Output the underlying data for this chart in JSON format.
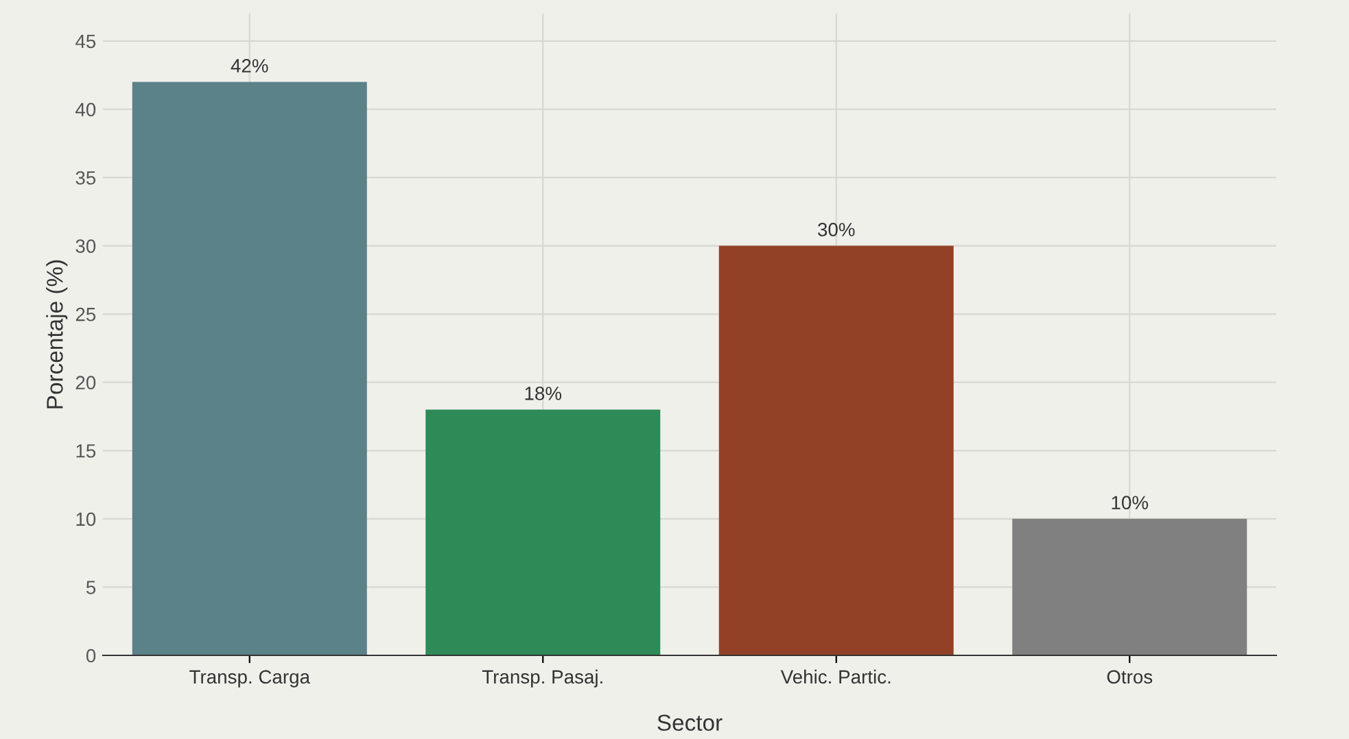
{
  "chart_data": {
    "type": "bar",
    "xlabel": "Sector",
    "ylabel": "Porcentaje (%)",
    "categories": [
      "Transp. Carga",
      "Transp. Pasaj.",
      "Vehic. Partic.",
      "Otros"
    ],
    "values": [
      42,
      18,
      30,
      10
    ],
    "colors": [
      "#5b8189",
      "#2e8a57",
      "#934126",
      "#808080"
    ],
    "value_labels": [
      "42%",
      "18%",
      "30%",
      "10%"
    ],
    "ylim": [
      0,
      47
    ],
    "yticks": [
      0,
      5,
      10,
      15,
      20,
      25,
      30,
      35,
      40,
      45
    ],
    "grid": true
  }
}
